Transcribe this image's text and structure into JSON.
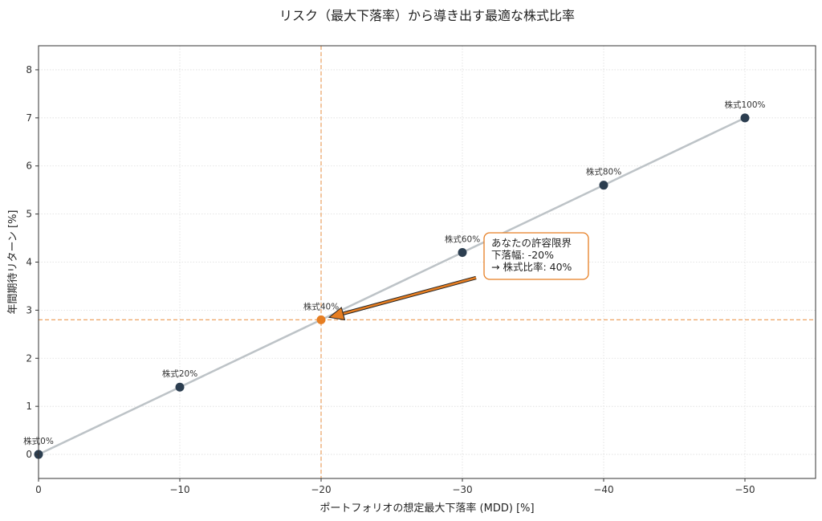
{
  "chart_data": {
    "type": "line",
    "title": "リスク（最大下落率）から導き出す最適な株式比率",
    "xlabel": "ポートフォリオの想定最大下落率 (MDD) [%]",
    "ylabel": "年間期待リターン [%]",
    "xlim": [
      0,
      -55
    ],
    "ylim": [
      -0.5,
      8.5
    ],
    "x_ticks": [
      0,
      -10,
      -20,
      -30,
      -40,
      -50
    ],
    "x_tick_labels": [
      "0",
      "−10",
      "−20",
      "−30",
      "−40",
      "−50"
    ],
    "y_ticks": [
      0,
      1,
      2,
      3,
      4,
      5,
      6,
      7,
      8
    ],
    "y_tick_labels": [
      "0",
      "1",
      "2",
      "3",
      "4",
      "5",
      "6",
      "7",
      "8"
    ],
    "grid": true,
    "series": [
      {
        "name": "株式比率",
        "color": "#2c3e50",
        "line_color": "#bdc3c7",
        "points": [
          {
            "x": 0,
            "y": 0.0,
            "label": "株式0%"
          },
          {
            "x": -10,
            "y": 1.4,
            "label": "株式20%"
          },
          {
            "x": -20,
            "y": 2.8,
            "label": "株式40%"
          },
          {
            "x": -30,
            "y": 4.2,
            "label": "株式60%"
          },
          {
            "x": -40,
            "y": 5.6,
            "label": "株式80%"
          },
          {
            "x": -50,
            "y": 7.0,
            "label": "株式100%"
          }
        ]
      }
    ],
    "highlight": {
      "x": -20,
      "y": 2.8,
      "color": "#e67e22",
      "vline_x": -20,
      "hline_y": 2.8
    },
    "annotation": {
      "lines": [
        "あなたの許容限界",
        "下落幅: -20%",
        "→ 株式比率: 40%"
      ],
      "border_color": "#e67e22",
      "arrow_color": "#e67e22"
    }
  }
}
